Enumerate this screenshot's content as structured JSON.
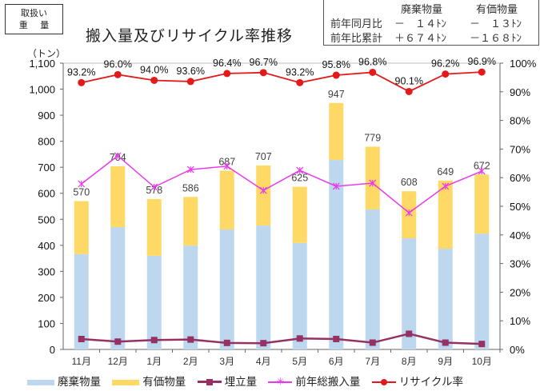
{
  "handling_box": {
    "line1": "取扱い",
    "line2": "重 量"
  },
  "title": "搬入量及びリサイクル率推移",
  "summary": {
    "headers": [
      "廃棄物量",
      "有価物量"
    ],
    "rows": [
      {
        "label": "前年同月比",
        "waste": "－　１４ﾄﾝ",
        "valuable": "－　１３ﾄﾝ"
      },
      {
        "label": "前年比累計",
        "waste": "＋６７４ﾄﾝ",
        "valuable": "－１６８ﾄﾝ"
      }
    ]
  },
  "unit_label": "（トン）",
  "colors": {
    "waste": "#bdd7ee",
    "valuable": "#ffd966",
    "landfill": "#953163",
    "prev_year": "#e83ae8",
    "recycle": "#e41a1a"
  },
  "legend": [
    {
      "key": "waste",
      "label": "廃棄物量",
      "kind": "bar"
    },
    {
      "key": "valuable",
      "label": "有価物量",
      "kind": "bar"
    },
    {
      "key": "landfill",
      "label": "埋立量",
      "kind": "line-square"
    },
    {
      "key": "prev_year",
      "label": "前年総搬入量",
      "kind": "line-star"
    },
    {
      "key": "recycle",
      "label": "リサイクル率",
      "kind": "line-dot"
    }
  ],
  "chart_data": {
    "type": "bar",
    "stacked": true,
    "title": "搬入量及びリサイクル率推移",
    "categories": [
      "11月",
      "12月",
      "1月",
      "2月",
      "3月",
      "4月",
      "5月",
      "6月",
      "7月",
      "8月",
      "9月",
      "10月"
    ],
    "series": [
      {
        "name": "廃棄物量",
        "type": "bar",
        "axis": "left",
        "values": [
          366,
          470,
          360,
          399,
          461,
          476,
          409,
          728,
          538,
          427,
          387,
          445
        ]
      },
      {
        "name": "有価物量",
        "type": "bar",
        "axis": "left",
        "values": [
          204,
          234,
          218,
          187,
          226,
          231,
          216,
          219,
          241,
          181,
          262,
          227
        ]
      },
      {
        "name": "埋立量",
        "type": "line",
        "axis": "left",
        "values": [
          40,
          30,
          36,
          38,
          25,
          24,
          42,
          40,
          26,
          60,
          26,
          21
        ]
      },
      {
        "name": "前年総搬入量",
        "type": "line",
        "axis": "left",
        "values": [
          636,
          744,
          624,
          691,
          704,
          611,
          688,
          627,
          639,
          525,
          627,
          685
        ]
      },
      {
        "name": "リサイクル率",
        "type": "line",
        "axis": "right",
        "values": [
          93.2,
          96.0,
          94.0,
          93.6,
          96.4,
          96.7,
          93.2,
          95.8,
          96.8,
          90.1,
          96.2,
          96.9
        ],
        "labels": [
          "93.2%",
          "96.0%",
          "94.0%",
          "93.6%",
          "96.4%",
          "96.7%",
          "93.2%",
          "95.8%",
          "96.8%",
          "90.1%",
          "96.2%",
          "96.9%"
        ]
      }
    ],
    "totals": [
      570,
      704,
      578,
      586,
      687,
      707,
      625,
      947,
      779,
      608,
      649,
      672
    ],
    "total_labels": [
      "570",
      "704",
      "578",
      "586",
      "687",
      "707",
      "625",
      "947",
      "779",
      "608",
      "649",
      "672"
    ],
    "ylabel": "（トン）",
    "ylim": [
      0,
      1100
    ],
    "yticks": [
      "0",
      "100",
      "200",
      "300",
      "400",
      "500",
      "600",
      "700",
      "800",
      "900",
      "1,000",
      "1,100"
    ],
    "y2lim": [
      0,
      100
    ],
    "y2ticks": [
      "0%",
      "10%",
      "20%",
      "30%",
      "40%",
      "50%",
      "60%",
      "70%",
      "80%",
      "90%",
      "100%"
    ],
    "grid": false,
    "legend_position": "bottom"
  }
}
